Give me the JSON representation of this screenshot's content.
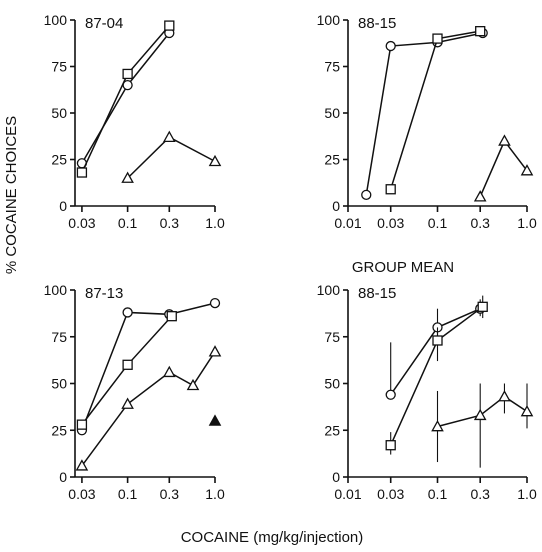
{
  "chart_data": {
    "type": "line",
    "ylabel": "% COCAINE CHOICES",
    "xlabel": "COCAINE (mg/kg/injection)",
    "panels": [
      {
        "id": "p1",
        "label": "87-04",
        "heading": "",
        "x_scale": "log",
        "xlim": [
          0.025,
          1.0
        ],
        "ylim": [
          0,
          100
        ],
        "x_ticks": [
          "0.03",
          "0.1",
          "0.3",
          "1.0"
        ],
        "x_tick_values": [
          0.03,
          0.1,
          0.3,
          1.0
        ],
        "y_ticks": [
          "0",
          "25",
          "50",
          "75",
          "100"
        ],
        "y_tick_values": [
          0,
          25,
          50,
          75,
          100
        ],
        "series": [
          {
            "marker": "circle",
            "x": [
              0.03,
              0.1,
              0.3
            ],
            "y": [
              23,
              65,
              93
            ]
          },
          {
            "marker": "square",
            "x": [
              0.03,
              0.1,
              0.3
            ],
            "y": [
              18,
              71,
              97
            ]
          },
          {
            "marker": "triangle",
            "x": [
              0.1,
              0.3,
              1.0
            ],
            "y": [
              15,
              37,
              24
            ]
          }
        ],
        "extra_points": []
      },
      {
        "id": "p2",
        "label": "88-15",
        "heading": "",
        "x_scale": "log",
        "xlim": [
          0.01,
          1.0
        ],
        "ylim": [
          0,
          100
        ],
        "x_ticks": [
          "0.01",
          "0.03",
          "0.1",
          "0.3",
          "1.0"
        ],
        "x_tick_values": [
          0.01,
          0.03,
          0.1,
          0.3,
          1.0
        ],
        "y_ticks": [
          "0",
          "25",
          "50",
          "75",
          "100"
        ],
        "y_tick_values": [
          0,
          25,
          50,
          75,
          100
        ],
        "series": [
          {
            "marker": "circle",
            "x": [
              0.016,
              0.03,
              0.1,
              0.32
            ],
            "y": [
              6,
              86,
              88,
              93
            ]
          },
          {
            "marker": "square",
            "x": [
              0.03,
              0.1,
              0.3
            ],
            "y": [
              9,
              90,
              94
            ]
          },
          {
            "marker": "triangle",
            "x": [
              0.3,
              0.56,
              1.0
            ],
            "y": [
              5,
              35,
              19
            ]
          }
        ],
        "extra_points": []
      },
      {
        "id": "p3",
        "label": "87-13",
        "heading": "",
        "x_scale": "log",
        "xlim": [
          0.025,
          1.0
        ],
        "ylim": [
          0,
          100
        ],
        "x_ticks": [
          "0.03",
          "0.1",
          "0.3",
          "1.0"
        ],
        "x_tick_values": [
          0.03,
          0.1,
          0.3,
          1.0
        ],
        "y_ticks": [
          "0",
          "25",
          "50",
          "75",
          "100"
        ],
        "y_tick_values": [
          0,
          25,
          50,
          75,
          100
        ],
        "series": [
          {
            "marker": "circle",
            "x": [
              0.03,
              0.1,
              0.3,
              1.0
            ],
            "y": [
              25,
              88,
              87,
              93
            ]
          },
          {
            "marker": "square",
            "x": [
              0.03,
              0.1,
              0.32
            ],
            "y": [
              28,
              60,
              86
            ]
          },
          {
            "marker": "triangle",
            "x": [
              0.03,
              0.1,
              0.3,
              0.56,
              1.0
            ],
            "y": [
              6,
              39,
              56,
              49,
              67
            ]
          }
        ],
        "extra_points": [
          {
            "marker": "triangle-filled",
            "x": 1.0,
            "y": 30
          }
        ]
      },
      {
        "id": "p4",
        "label": "88-15",
        "heading": "GROUP MEAN",
        "x_scale": "log",
        "xlim": [
          0.01,
          1.0
        ],
        "ylim": [
          0,
          100
        ],
        "x_ticks": [
          "0.01",
          "0.03",
          "0.1",
          "0.3",
          "1.0"
        ],
        "x_tick_values": [
          0.01,
          0.03,
          0.1,
          0.3,
          1.0
        ],
        "y_ticks": [
          "0",
          "25",
          "50",
          "75",
          "100"
        ],
        "y_tick_values": [
          0,
          25,
          50,
          75,
          100
        ],
        "series": [
          {
            "marker": "circle",
            "x": [
              0.03,
              0.1,
              0.3
            ],
            "y": [
              44,
              80,
              90
            ],
            "err_low": [
              44,
              72,
              86
            ],
            "err_high": [
              72,
              90,
              95
            ]
          },
          {
            "marker": "square",
            "x": [
              0.03,
              0.1,
              0.32
            ],
            "y": [
              17,
              73,
              91
            ],
            "err_low": [
              12,
              62,
              85
            ],
            "err_high": [
              24,
              80,
              97
            ]
          },
          {
            "marker": "triangle",
            "x": [
              0.1,
              0.3,
              0.56,
              1.0
            ],
            "y": [
              27,
              33,
              43,
              35
            ],
            "err_low": [
              8,
              5,
              34,
              26
            ],
            "err_high": [
              46,
              50,
              50,
              50
            ]
          }
        ],
        "extra_points": []
      }
    ]
  }
}
